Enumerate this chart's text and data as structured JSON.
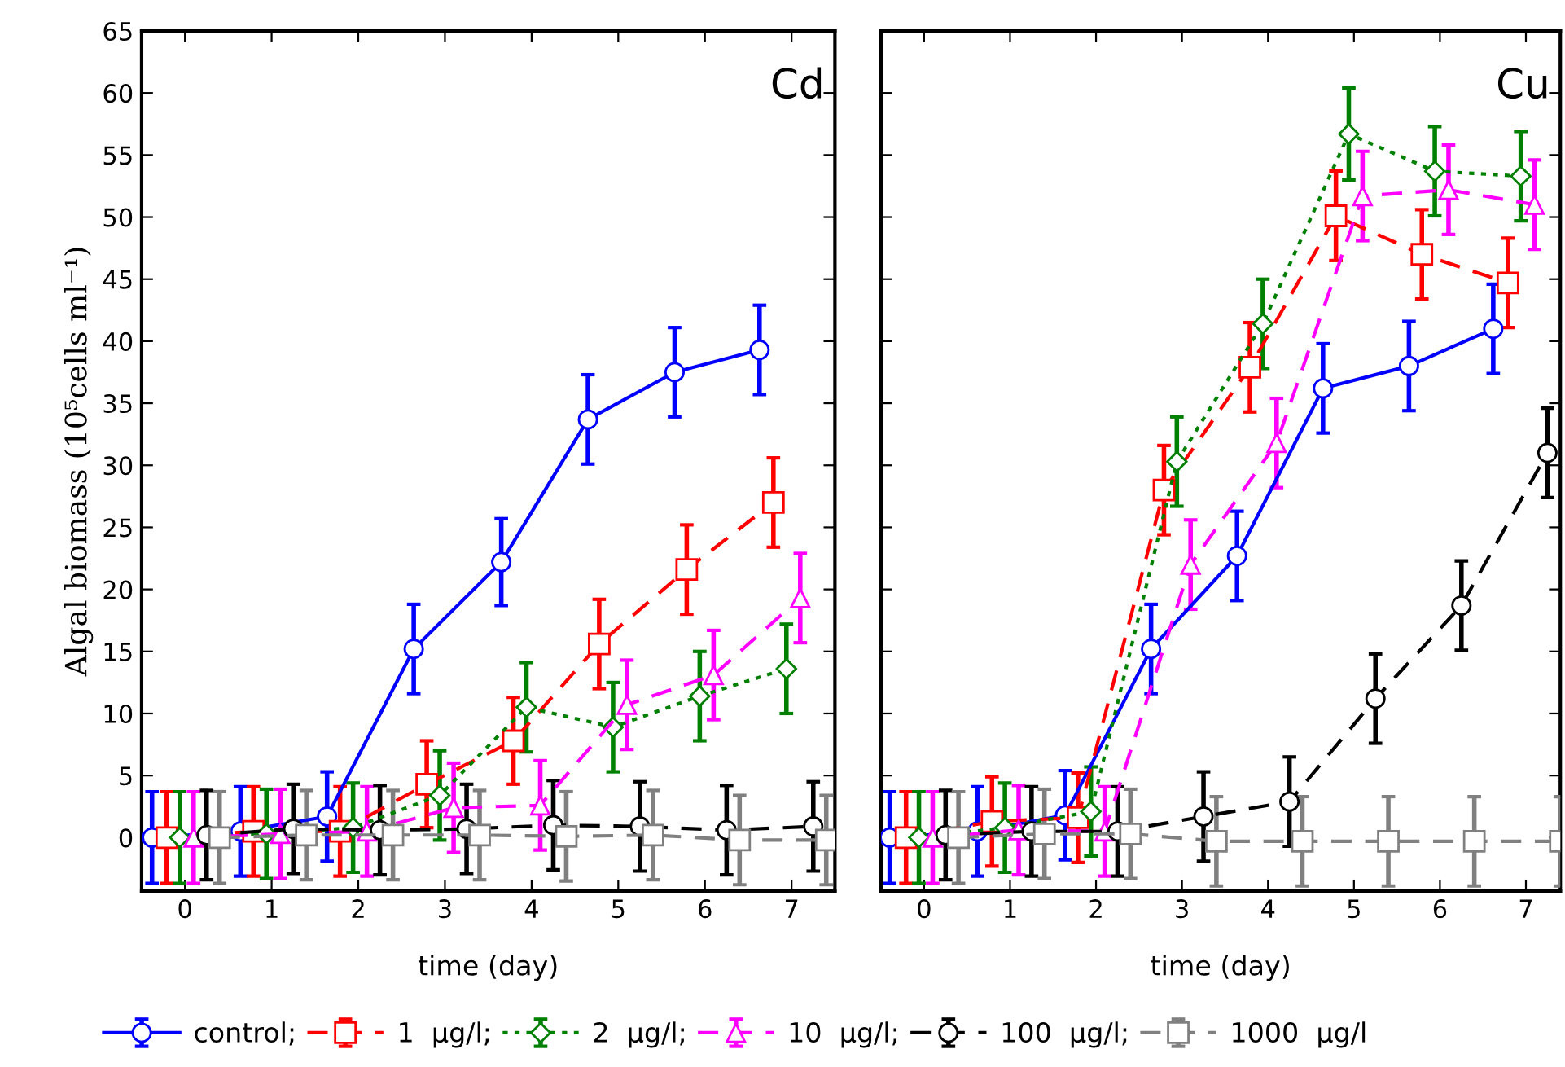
{
  "chart_data": [
    {
      "type": "line",
      "title": null,
      "annotations": [
        "Cd"
      ],
      "xlabel": "time (day)",
      "ylabel": "Algal biomass (10⁵cells ml⁻¹)",
      "xlim": [
        -0.5,
        7.5
      ],
      "xticks": [
        0,
        1,
        2,
        3,
        4,
        5,
        6,
        7
      ],
      "ylim": [
        -4.3,
        65
      ],
      "yticks": [
        0,
        5,
        10,
        15,
        20,
        25,
        30,
        35,
        40,
        45,
        50,
        55,
        60,
        65
      ],
      "grid": false,
      "legend": "bottom",
      "series": [
        {
          "name": "control;",
          "color": "#0000ff",
          "marker": "circle",
          "line_style": "solid",
          "x": [
            -0.38,
            0.64,
            1.64,
            2.64,
            3.65,
            4.65,
            5.65,
            6.63
          ],
          "values": [
            0,
            0.5,
            1.7,
            15.2,
            22.2,
            33.7,
            37.5,
            39.3
          ],
          "errors": [
            3.7,
            3.6,
            3.6,
            3.6,
            3.5,
            3.6,
            3.6,
            3.6
          ]
        },
        {
          "name": "1  µg/l;",
          "color": "#ff0000",
          "marker": "square",
          "line_style": "dashed",
          "x": [
            -0.21,
            0.79,
            1.79,
            2.79,
            3.79,
            4.78,
            5.79,
            6.79
          ],
          "values": [
            0,
            0.5,
            0.5,
            4.3,
            7.8,
            15.6,
            21.6,
            27.0
          ],
          "errors": [
            3.7,
            3.6,
            3.6,
            3.5,
            3.5,
            3.6,
            3.6,
            3.6
          ]
        },
        {
          "name": "2  µg/l;",
          "color": "#008000",
          "marker": "diamond",
          "line_style": "dotted",
          "x": [
            -0.06,
            0.94,
            1.94,
            2.94,
            3.94,
            4.94,
            5.94,
            6.94
          ],
          "values": [
            0,
            0.3,
            0.8,
            3.4,
            10.5,
            8.9,
            11.4,
            13.6
          ],
          "errors": [
            3.7,
            3.6,
            3.6,
            3.6,
            3.6,
            3.6,
            3.6,
            3.6
          ]
        },
        {
          "name": "10  µg/l;",
          "color": "#ff00ff",
          "marker": "triangle",
          "line_style": "dashed",
          "x": [
            0.1,
            1.1,
            2.1,
            3.1,
            4.1,
            5.1,
            6.1,
            7.1
          ],
          "values": [
            0,
            0.3,
            0.5,
            2.4,
            2.6,
            10.7,
            13.1,
            19.3
          ],
          "errors": [
            3.7,
            3.6,
            3.6,
            3.6,
            3.6,
            3.6,
            3.6,
            3.6
          ]
        },
        {
          "name": "100  µg/l;",
          "color": "#000000",
          "marker": "circle",
          "line_style": "dashed",
          "x": [
            0.25,
            1.25,
            2.25,
            3.25,
            4.25,
            5.25,
            6.25,
            7.25
          ],
          "values": [
            0.2,
            0.7,
            0.6,
            0.7,
            1.0,
            0.9,
            0.6,
            0.9
          ],
          "errors": [
            3.6,
            3.6,
            3.6,
            3.6,
            3.6,
            3.6,
            3.6,
            3.6
          ]
        },
        {
          "name": "1000  µg/l",
          "color": "#808080",
          "marker": "square",
          "line_style": "dashed",
          "x": [
            0.4,
            1.4,
            2.4,
            3.4,
            4.4,
            5.4,
            6.4,
            7.4
          ],
          "values": [
            0,
            0.2,
            0.2,
            0.2,
            0.1,
            0.2,
            -0.2,
            -0.2
          ],
          "errors": [
            3.7,
            3.6,
            3.6,
            3.6,
            3.6,
            3.6,
            3.6,
            3.6
          ]
        }
      ]
    },
    {
      "type": "line",
      "title": null,
      "annotations": [
        "Cu"
      ],
      "xlabel": "time (day)",
      "xlim": [
        -0.5,
        7.4
      ],
      "xticks": [
        0,
        1,
        2,
        3,
        4,
        5,
        6,
        7
      ],
      "ylim": [
        -4.3,
        65
      ],
      "yticks": [
        0,
        5,
        10,
        15,
        20,
        25,
        30,
        35,
        40,
        45,
        50,
        55,
        60,
        65
      ],
      "tick_labels": "x",
      "grid": false,
      "series": [
        {
          "color": "#0000ff",
          "marker": "circle",
          "line_style": "solid",
          "x": [
            -0.4,
            0.62,
            1.64,
            2.64,
            3.64,
            4.64,
            5.64,
            6.62
          ],
          "values": [
            0,
            0.5,
            1.8,
            15.2,
            22.7,
            36.2,
            38.0,
            41.0
          ],
          "errors": [
            3.7,
            3.6,
            3.6,
            3.6,
            3.6,
            3.6,
            3.6,
            3.6
          ]
        },
        {
          "color": "#ff0000",
          "marker": "square",
          "line_style": "dashed",
          "x": [
            -0.21,
            0.79,
            1.79,
            2.79,
            3.79,
            4.79,
            5.79,
            6.79
          ],
          "values": [
            0,
            1.3,
            1.6,
            28.0,
            37.9,
            50.1,
            47.0,
            44.7
          ],
          "errors": [
            3.7,
            3.6,
            3.6,
            3.6,
            3.6,
            3.6,
            3.6,
            3.6
          ]
        },
        {
          "color": "#008000",
          "marker": "diamond",
          "line_style": "dotted",
          "x": [
            -0.06,
            0.94,
            1.94,
            2.94,
            3.94,
            4.94,
            5.94,
            6.94
          ],
          "values": [
            0,
            0.8,
            2.1,
            30.3,
            41.4,
            56.7,
            53.7,
            53.3
          ],
          "errors": [
            3.7,
            3.6,
            3.6,
            3.6,
            3.6,
            3.7,
            3.6,
            3.6
          ]
        },
        {
          "color": "#ff00ff",
          "marker": "triangle",
          "line_style": "dashed",
          "x": [
            0.1,
            1.1,
            2.1,
            3.1,
            4.1,
            5.1,
            6.1,
            7.1
          ],
          "values": [
            0,
            0.6,
            0.5,
            22.0,
            31.8,
            51.7,
            52.2,
            51.0
          ],
          "errors": [
            3.7,
            3.6,
            3.6,
            3.6,
            3.6,
            3.6,
            3.6,
            3.6
          ]
        },
        {
          "color": "#000000",
          "marker": "circle",
          "line_style": "dashed",
          "x": [
            0.25,
            1.25,
            2.25,
            3.25,
            4.25,
            5.25,
            6.25,
            7.25
          ],
          "values": [
            0.2,
            0.5,
            0.5,
            1.7,
            2.9,
            11.2,
            18.7,
            31.0
          ],
          "errors": [
            3.6,
            3.6,
            3.6,
            3.6,
            3.6,
            3.6,
            3.6,
            3.6
          ]
        },
        {
          "color": "#808080",
          "marker": "square",
          "line_style": "dashed",
          "x": [
            0.4,
            1.4,
            2.4,
            3.4,
            4.4,
            5.4,
            6.4,
            7.4
          ],
          "values": [
            0,
            0.3,
            0.3,
            -0.3,
            -0.3,
            -0.3,
            -0.3,
            -0.3
          ],
          "errors": [
            3.7,
            3.6,
            3.6,
            3.6,
            3.6,
            3.6,
            3.6,
            3.6
          ]
        }
      ]
    }
  ]
}
